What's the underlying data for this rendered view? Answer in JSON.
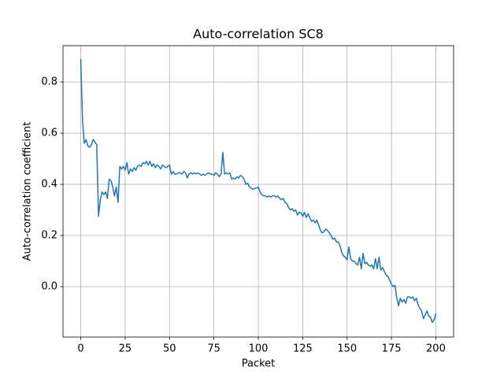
{
  "chart_data": {
    "type": "line",
    "title": "Auto-correlation SC8",
    "x_label": "Packet",
    "y_label": "Auto-correlation coefficient",
    "color": "#1f77b4",
    "grid": true,
    "xlim": [
      -10,
      210
    ],
    "ylim": [
      -0.197,
      0.942
    ],
    "xticks": [
      0,
      25,
      50,
      75,
      100,
      125,
      150,
      175,
      200
    ],
    "yticks": [
      {
        "value": 0,
        "label": "0.0"
      },
      0.2,
      0.4,
      0.6,
      0.8
    ],
    "x": [
      0,
      1,
      2,
      3,
      4,
      5,
      6,
      7,
      8,
      9,
      10,
      11,
      12,
      13,
      14,
      15,
      16,
      17,
      18,
      19,
      20,
      21,
      22,
      23,
      24,
      25,
      26,
      27,
      28,
      29,
      30,
      31,
      32,
      33,
      34,
      35,
      36,
      37,
      38,
      39,
      40,
      41,
      42,
      43,
      44,
      45,
      46,
      47,
      48,
      49,
      50,
      51,
      52,
      53,
      54,
      55,
      56,
      57,
      58,
      59,
      60,
      61,
      62,
      63,
      64,
      65,
      66,
      67,
      68,
      69,
      70,
      71,
      72,
      73,
      74,
      75,
      76,
      77,
      78,
      79,
      80,
      81,
      82,
      83,
      84,
      85,
      86,
      87,
      88,
      89,
      90,
      91,
      92,
      93,
      94,
      95,
      96,
      97,
      98,
      99,
      100,
      101,
      102,
      103,
      104,
      105,
      106,
      107,
      108,
      109,
      110,
      111,
      112,
      113,
      114,
      115,
      116,
      117,
      118,
      119,
      120,
      121,
      122,
      123,
      124,
      125,
      126,
      127,
      128,
      129,
      130,
      131,
      132,
      133,
      134,
      135,
      136,
      137,
      138,
      139,
      140,
      141,
      142,
      143,
      144,
      145,
      146,
      147,
      148,
      149,
      150,
      151,
      152,
      153,
      154,
      155,
      156,
      157,
      158,
      159,
      160,
      161,
      162,
      163,
      164,
      165,
      166,
      167,
      168,
      169,
      170,
      171,
      172,
      173,
      174,
      175,
      176,
      177,
      178,
      179,
      180,
      181,
      182,
      183,
      184,
      185,
      186,
      187,
      188,
      189,
      190,
      191,
      192,
      193,
      194,
      195,
      196,
      197,
      198,
      199,
      200
    ],
    "values": [
      0.89,
      0.65,
      0.56,
      0.575,
      0.55,
      0.545,
      0.555,
      0.575,
      0.565,
      0.555,
      0.275,
      0.34,
      0.37,
      0.36,
      0.37,
      0.345,
      0.42,
      0.415,
      0.39,
      0.355,
      0.39,
      0.33,
      0.47,
      0.46,
      0.47,
      0.455,
      0.485,
      0.44,
      0.46,
      0.45,
      0.465,
      0.455,
      0.47,
      0.475,
      0.47,
      0.485,
      0.48,
      0.49,
      0.475,
      0.49,
      0.47,
      0.48,
      0.465,
      0.475,
      0.47,
      0.46,
      0.475,
      0.47,
      0.465,
      0.47,
      0.475,
      0.44,
      0.45,
      0.44,
      0.44,
      0.445,
      0.445,
      0.44,
      0.45,
      0.445,
      0.425,
      0.44,
      0.445,
      0.44,
      0.445,
      0.44,
      0.445,
      0.44,
      0.435,
      0.44,
      0.435,
      0.44,
      0.445,
      0.44,
      0.44,
      0.435,
      0.445,
      0.44,
      0.43,
      0.44,
      0.525,
      0.44,
      0.445,
      0.44,
      0.445,
      0.42,
      0.425,
      0.42,
      0.43,
      0.425,
      0.435,
      0.43,
      0.42,
      0.4,
      0.405,
      0.39,
      0.385,
      0.38,
      0.385,
      0.385,
      0.39,
      0.37,
      0.36,
      0.355,
      0.355,
      0.35,
      0.355,
      0.35,
      0.355,
      0.355,
      0.35,
      0.355,
      0.345,
      0.34,
      0.345,
      0.33,
      0.325,
      0.31,
      0.3,
      0.305,
      0.295,
      0.3,
      0.28,
      0.29,
      0.29,
      0.275,
      0.29,
      0.27,
      0.285,
      0.27,
      0.255,
      0.26,
      0.25,
      0.26,
      0.24,
      0.22,
      0.21,
      0.215,
      0.225,
      0.22,
      0.21,
      0.2,
      0.185,
      0.19,
      0.175,
      0.175,
      0.16,
      0.135,
      0.12,
      0.115,
      0.105,
      0.155,
      0.11,
      0.1,
      0.1,
      0.09,
      0.085,
      0.115,
      0.07,
      0.13,
      0.09,
      0.095,
      0.085,
      0.08,
      0.085,
      0.07,
      0.11,
      0.07,
      0.115,
      0.065,
      0.075,
      0.06,
      0.045,
      0.04,
      0.025,
      0.01,
      0.0,
      0.005,
      -0.045,
      -0.075,
      -0.045,
      -0.06,
      -0.05,
      -0.065,
      -0.04,
      -0.04,
      -0.045,
      -0.04,
      -0.055,
      -0.045,
      -0.07,
      -0.085,
      -0.095,
      -0.125,
      -0.11,
      -0.095,
      -0.115,
      -0.12,
      -0.14,
      -0.13,
      -0.105
    ]
  }
}
